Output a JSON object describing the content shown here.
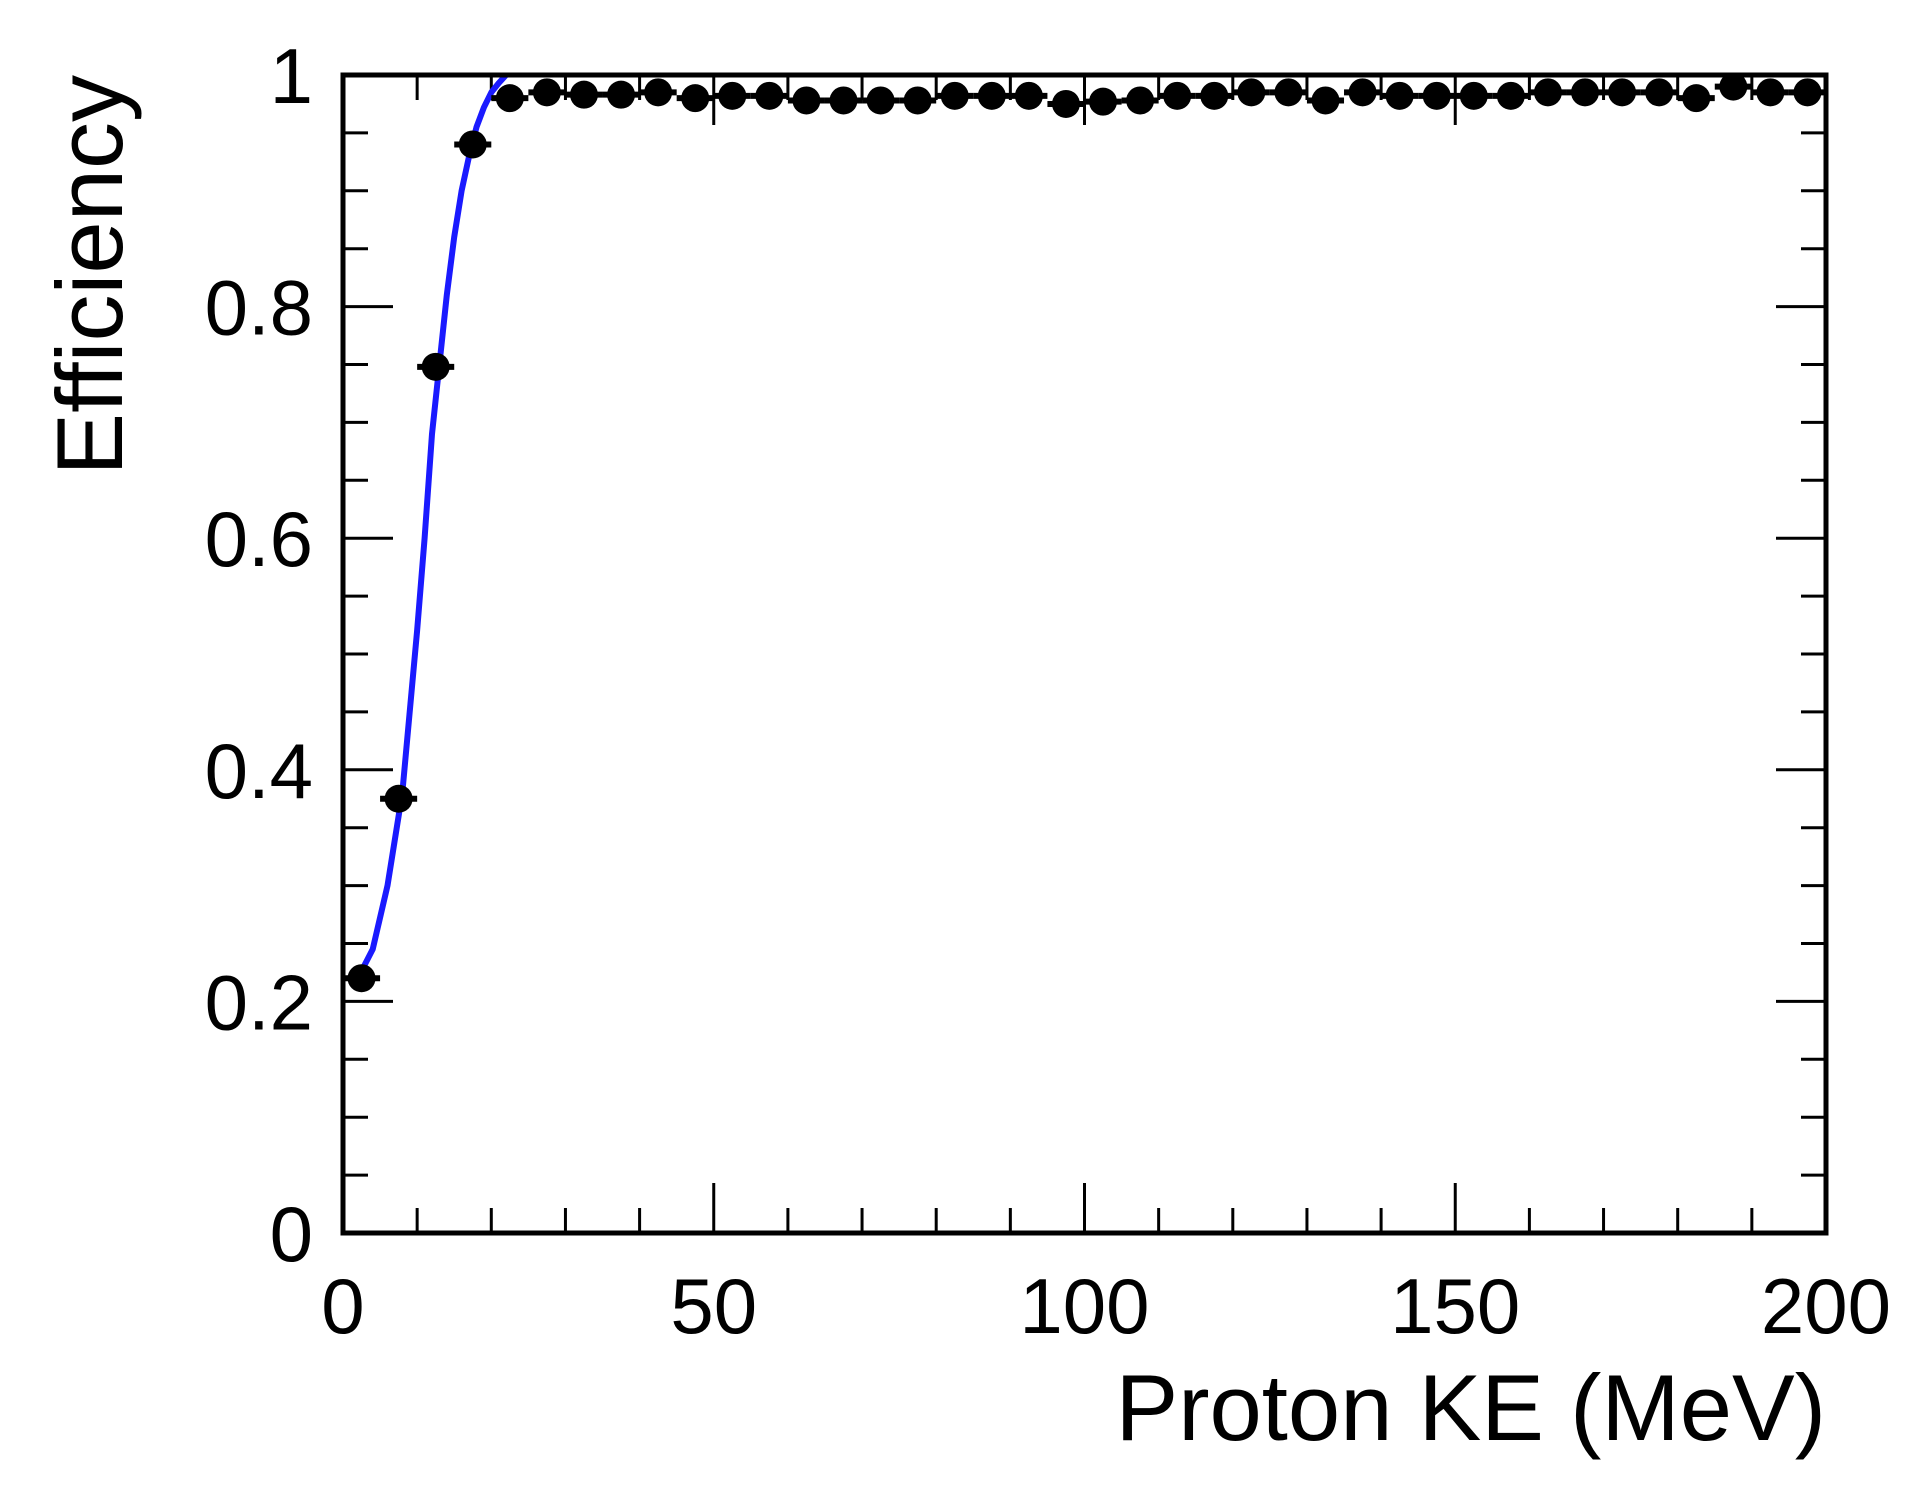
{
  "chart_data": {
    "type": "scatter",
    "title": "",
    "xlabel": "Proton KE (MeV)",
    "ylabel": "Efficiency",
    "xlim": [
      0,
      200
    ],
    "ylim": [
      0,
      1
    ],
    "x_ticks": [
      0,
      50,
      100,
      150,
      200
    ],
    "y_ticks": [
      0,
      0.2,
      0.4,
      0.6,
      0.8,
      1
    ],
    "x_tick_labels": [
      "0",
      "50",
      "100",
      "150",
      "200"
    ],
    "y_tick_labels": [
      "0",
      "0.2",
      "0.4",
      "0.6",
      "0.8",
      "1"
    ],
    "grid": false,
    "legend": "none",
    "series": [
      {
        "kind": "points-with-errorbars",
        "color": "#000000",
        "x_error": 2.5,
        "x": [
          2.5,
          7.5,
          12.5,
          17.5,
          22.5,
          27.5,
          32.5,
          37.5,
          42.5,
          47.5,
          52.5,
          57.5,
          62.5,
          67.5,
          72.5,
          77.5,
          82.5,
          87.5,
          92.5,
          97.5,
          102.5,
          107.5,
          112.5,
          117.5,
          122.5,
          127.5,
          132.5,
          137.5,
          142.5,
          147.5,
          152.5,
          157.5,
          162.5,
          167.5,
          172.5,
          177.5,
          182.5,
          187.5,
          192.5,
          197.5
        ],
        "y": [
          0.22,
          0.375,
          0.748,
          0.94,
          0.98,
          0.985,
          0.983,
          0.983,
          0.985,
          0.98,
          0.982,
          0.982,
          0.978,
          0.978,
          0.978,
          0.978,
          0.982,
          0.982,
          0.982,
          0.975,
          0.977,
          0.978,
          0.982,
          0.982,
          0.985,
          0.985,
          0.978,
          0.985,
          0.982,
          0.982,
          0.982,
          0.982,
          0.985,
          0.985,
          0.985,
          0.985,
          0.98,
          0.99,
          0.985,
          0.985
        ]
      },
      {
        "kind": "fit-curve",
        "color": "#1a1aff",
        "x": [
          2,
          4,
          6,
          8,
          10,
          11,
          12,
          13,
          14,
          15,
          16,
          17,
          18,
          19,
          20,
          21,
          22
        ],
        "y": [
          0.22,
          0.245,
          0.3,
          0.38,
          0.52,
          0.6,
          0.69,
          0.75,
          0.81,
          0.86,
          0.9,
          0.93,
          0.955,
          0.972,
          0.985,
          0.993,
          1.0
        ]
      }
    ]
  }
}
